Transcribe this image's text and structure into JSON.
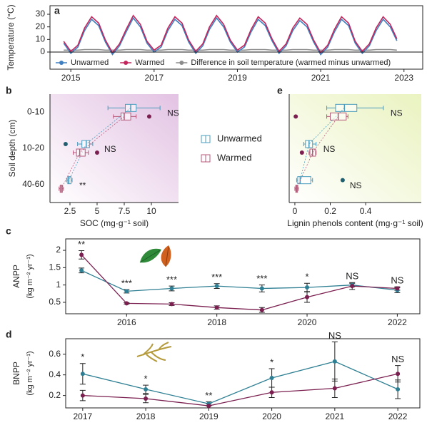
{
  "chart_data": [
    {
      "type": "line",
      "panel": "a",
      "ylabel": "Temperature (°C)",
      "x": [
        2014.83,
        2015,
        2015.17,
        2015.33,
        2015.5,
        2015.67,
        2015.83,
        2016,
        2016.17,
        2016.33,
        2016.5,
        2016.67,
        2016.83,
        2017,
        2017.17,
        2017.33,
        2017.5,
        2017.67,
        2017.83,
        2018,
        2018.17,
        2018.33,
        2018.5,
        2018.67,
        2018.83,
        2019,
        2019.17,
        2019.33,
        2019.5,
        2019.67,
        2019.83,
        2020,
        2020.17,
        2020.33,
        2020.5,
        2020.67,
        2020.83,
        2021,
        2021.17,
        2021.33,
        2021.5,
        2021.67,
        2021.83,
        2022,
        2022.17,
        2022.33,
        2022.5,
        2022.67,
        2022.83
      ],
      "series": [
        {
          "name": "Unwarmed",
          "color": "#3d7fc0",
          "values": [
            7,
            -1,
            4,
            17,
            26,
            21,
            8,
            -2,
            5,
            16,
            27,
            20,
            7,
            0,
            4,
            17,
            26,
            21,
            8,
            -1,
            5,
            18,
            27,
            20,
            8,
            0,
            4,
            16,
            26,
            21,
            9,
            -1,
            5,
            17,
            25,
            20,
            8,
            -2,
            4,
            16,
            26,
            21,
            7,
            -1,
            5,
            17,
            26,
            20,
            9
          ]
        },
        {
          "name": "Warmed",
          "color": "#c2255c",
          "values": [
            8.5,
            0.5,
            5.5,
            19,
            28,
            23,
            9.5,
            -0.5,
            6.5,
            18,
            29,
            22,
            8.5,
            1.5,
            5.5,
            19,
            28,
            23,
            9.5,
            0.5,
            6.5,
            20,
            29,
            22,
            9.5,
            1.5,
            5.5,
            18,
            28,
            23,
            10.5,
            0.5,
            6.5,
            19,
            27,
            22,
            9.5,
            -0.5,
            5.5,
            18,
            28,
            23,
            8.5,
            0.5,
            6.5,
            19,
            28,
            22,
            10.5
          ]
        },
        {
          "name": "Difference in soil temperature (warmed minus unwarmed)",
          "color": "#8c8c8c",
          "values": [
            1.5,
            1.5,
            1.5,
            2,
            2,
            2,
            1.5,
            1.5,
            1.5,
            2,
            2,
            2,
            1.5,
            1.5,
            1.5,
            2,
            2,
            2,
            1.5,
            1.5,
            1.5,
            2,
            2,
            2,
            1.5,
            1.5,
            1.5,
            2,
            2,
            2,
            1.5,
            1.5,
            1.5,
            2,
            2,
            2,
            1.5,
            1.5,
            1.5,
            2,
            2,
            2,
            1.5,
            1.5,
            1.5,
            2,
            2,
            2,
            1.5
          ]
        }
      ],
      "reference_line": 0,
      "xlim": [
        2014.5,
        2023.45
      ],
      "xticks": [
        2015,
        2017,
        2019,
        2021,
        2023
      ],
      "ylim": [
        -13.6,
        36.8
      ],
      "yticks": [
        0,
        10,
        20,
        30
      ],
      "legend": "bottom-left"
    },
    {
      "type": "box",
      "panel": "b",
      "ylabel": "Soil depth (cm)",
      "xlabel": "SOC (mg·g⁻¹ soil)",
      "categories": [
        "0-10",
        "10-20",
        "40-60"
      ],
      "background": [
        "#ffffff",
        "#e3c3e3"
      ],
      "series": [
        {
          "name": "Unwarmed",
          "color": "#4a9bbd",
          "outlier_color": "#1f5f6f",
          "boxes": [
            {
              "min": 6.0,
              "q1": 7.6,
              "median": 8.1,
              "q3": 8.6,
              "max": 10.8
            },
            {
              "min": 3.2,
              "q1": 3.6,
              "median": 4.0,
              "q3": 4.3,
              "max": 4.6,
              "outliers": [
                2.1
              ]
            },
            {
              "min": 2.2,
              "q1": 2.3,
              "median": 2.4,
              "q3": 2.6,
              "max": 2.7
            }
          ]
        },
        {
          "name": "Warmed",
          "color": "#b5597a",
          "outlier_color": "#7a1f4f",
          "boxes": [
            {
              "min": 6.5,
              "q1": 7.2,
              "median": 7.5,
              "q3": 8.1,
              "max": 8.6,
              "outliers": [
                9.8
              ]
            },
            {
              "min": 2.8,
              "q1": 3.1,
              "median": 3.4,
              "q3": 3.9,
              "max": 4.2,
              "outliers": [
                5.0
              ]
            },
            {
              "min": 1.5,
              "q1": 1.6,
              "median": 1.7,
              "q3": 1.8,
              "max": 1.9
            }
          ]
        }
      ],
      "annotations": [
        "NS",
        "NS",
        "**"
      ],
      "xlim": [
        0.66,
        12.5
      ],
      "xticks": [
        2.5,
        5,
        7.5,
        10
      ],
      "legend": "right"
    },
    {
      "type": "box",
      "panel": "e",
      "xlabel": "Lignin phenols content (mg·g⁻¹ soil)",
      "background": [
        "#ffffff",
        "#eaf3c0"
      ],
      "series": [
        {
          "color": "#4a9bbd",
          "outlier_color": "#1f5f6f",
          "boxes": [
            {
              "min": 0.18,
              "q1": 0.23,
              "median": 0.28,
              "q3": 0.35,
              "max": 0.5
            },
            {
              "min": 0.05,
              "q1": 0.06,
              "median": 0.08,
              "q3": 0.1,
              "max": 0.12
            },
            {
              "min": 0.01,
              "q1": 0.016,
              "median": 0.03,
              "q3": 0.09,
              "max": 0.1,
              "outliers": [
                0.27
              ]
            }
          ]
        },
        {
          "color": "#b5597a",
          "outlier_color": "#7a1f4f",
          "boxes": [
            {
              "min": 0.18,
              "q1": 0.2,
              "median": 0.245,
              "q3": 0.29,
              "max": 0.3,
              "outliers": [
                0.005
              ]
            },
            {
              "min": 0.08,
              "q1": 0.085,
              "median": 0.1,
              "q3": 0.117,
              "max": 0.12,
              "outliers": [
                0.04
              ]
            },
            {
              "min": 0,
              "q1": 0.005,
              "median": 0.01,
              "q3": 0.015,
              "max": 0.02
            }
          ]
        }
      ],
      "annotations": [
        "NS",
        "NS",
        "NS"
      ],
      "xlim": [
        -0.032,
        0.714
      ],
      "xticks": [
        0,
        0.2,
        0.4
      ]
    },
    {
      "type": "errorline",
      "panel": "c",
      "ylabel": "ANPP",
      "yunits": "(kg m⁻² yr⁻¹)",
      "x": [
        2015,
        2016,
        2017,
        2018,
        2019,
        2020,
        2021,
        2022
      ],
      "series": [
        {
          "color": "#2e7f93",
          "values": [
            1.42,
            0.82,
            0.9,
            0.97,
            0.9,
            0.93,
            1.0,
            0.85
          ],
          "errors": [
            0.07,
            0.05,
            0.07,
            0.07,
            0.1,
            0.12,
            0.05,
            0.07
          ]
        },
        {
          "color": "#7a1f4f",
          "values": [
            1.87,
            0.47,
            0.45,
            0.35,
            0.28,
            0.65,
            0.97,
            0.9
          ],
          "errors": [
            0.12,
            0.02,
            0.04,
            0.05,
            0.07,
            0.15,
            0.1,
            0.05
          ]
        }
      ],
      "significance": [
        "**",
        "***",
        "***",
        "***",
        "***",
        "*",
        "NS",
        "NS"
      ],
      "xlim": [
        2014.65,
        2022.5
      ],
      "xticks": [
        2016,
        2018,
        2020,
        2022
      ],
      "ylim": [
        0.17,
        2.33
      ],
      "yticks": [
        0.5,
        1,
        1.5,
        2
      ]
    },
    {
      "type": "errorline",
      "panel": "d",
      "ylabel": "BNPP",
      "yunits": "(kg m⁻² yr⁻¹)",
      "x": [
        2017,
        2018,
        2019,
        2020,
        2021,
        2022
      ],
      "series": [
        {
          "color": "#2e7f93",
          "values": [
            0.41,
            0.26,
            0.12,
            0.37,
            0.53,
            0.26
          ],
          "errors": [
            0.1,
            0.04,
            0.02,
            0.09,
            0.19,
            0.09
          ]
        },
        {
          "color": "#7a1f4f",
          "values": [
            0.2,
            0.17,
            0.1,
            0.23,
            0.27,
            0.41
          ],
          "errors": [
            0.05,
            0.04,
            0.02,
            0.05,
            0.09,
            0.08
          ]
        }
      ],
      "significance": [
        "*",
        "*",
        "**",
        "*",
        "NS",
        "NS"
      ],
      "xlim": [
        2016.73,
        2022.35
      ],
      "xticks": [
        2017,
        2018,
        2019,
        2020,
        2021,
        2022
      ],
      "ylim": [
        0.08,
        0.75
      ],
      "yticks": [
        0.2,
        0.4,
        0.6
      ]
    }
  ]
}
